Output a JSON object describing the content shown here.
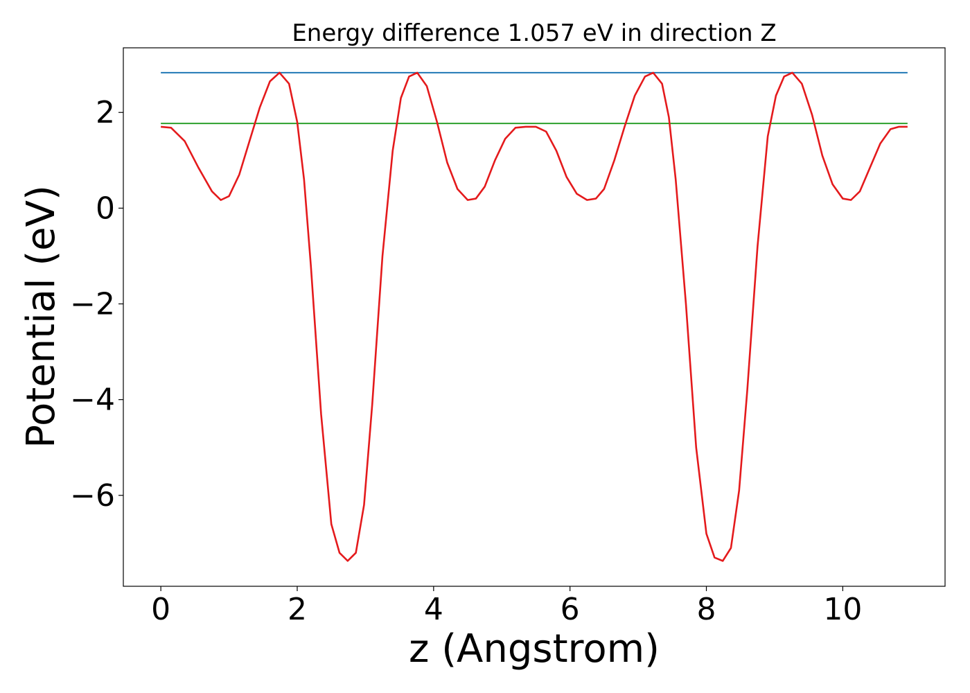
{
  "chart_data": {
    "type": "line",
    "title": "Energy difference 1.057 eV in direction Z",
    "xlabel": "z (Angstrom)",
    "ylabel": "Potential (eV)",
    "xlim": [
      -0.55,
      11.5
    ],
    "ylim": [
      -7.9,
      3.35
    ],
    "x_ticks": [
      0,
      2,
      4,
      6,
      8,
      10
    ],
    "x_tick_labels": [
      "0",
      "2",
      "4",
      "6",
      "8",
      "10"
    ],
    "y_ticks": [
      -6,
      -4,
      -2,
      0,
      2
    ],
    "y_tick_labels": [
      "−6",
      "−4",
      "−2",
      "0",
      "2"
    ],
    "grid": false,
    "legend": "none",
    "series": [
      {
        "color": "#1f77b4",
        "style": "horizontal",
        "x": [
          0,
          10.95
        ],
        "y": [
          2.83,
          2.83
        ]
      },
      {
        "color": "#2ca02c",
        "style": "horizontal",
        "x": [
          0,
          10.95
        ],
        "y": [
          1.77,
          1.77
        ]
      },
      {
        "color": "#e41a1c",
        "style": "curve",
        "x": [
          0,
          0.15,
          0.35,
          0.55,
          0.75,
          0.88,
          1.0,
          1.15,
          1.3,
          1.45,
          1.6,
          1.74,
          1.88,
          2.0,
          2.1,
          2.2,
          2.35,
          2.5,
          2.62,
          2.74,
          2.86,
          2.98,
          3.1,
          3.25,
          3.4,
          3.52,
          3.64,
          3.76,
          3.9,
          4.05,
          4.2,
          4.35,
          4.5,
          4.62,
          4.75,
          4.9,
          5.05,
          5.2,
          5.35,
          5.5,
          5.65,
          5.8,
          5.95,
          6.1,
          6.25,
          6.38,
          6.5,
          6.65,
          6.8,
          6.95,
          7.1,
          7.22,
          7.35,
          7.45,
          7.55,
          7.7,
          7.85,
          8.0,
          8.12,
          8.24,
          8.36,
          8.48,
          8.6,
          8.75,
          8.9,
          9.02,
          9.14,
          9.26,
          9.4,
          9.55,
          9.7,
          9.85,
          10.0,
          10.12,
          10.25,
          10.4,
          10.55,
          10.7,
          10.82,
          10.95
        ],
        "y": [
          1.7,
          1.68,
          1.4,
          0.85,
          0.35,
          0.17,
          0.25,
          0.7,
          1.4,
          2.1,
          2.65,
          2.83,
          2.6,
          1.8,
          0.6,
          -1.2,
          -4.3,
          -6.6,
          -7.2,
          -7.37,
          -7.2,
          -6.2,
          -4.1,
          -1.0,
          1.2,
          2.3,
          2.75,
          2.83,
          2.55,
          1.8,
          0.95,
          0.4,
          0.17,
          0.2,
          0.45,
          1.0,
          1.45,
          1.68,
          1.7,
          1.7,
          1.6,
          1.2,
          0.65,
          0.3,
          0.17,
          0.2,
          0.4,
          1.0,
          1.7,
          2.35,
          2.75,
          2.83,
          2.6,
          1.9,
          0.6,
          -2.0,
          -5.0,
          -6.8,
          -7.3,
          -7.37,
          -7.1,
          -5.9,
          -3.8,
          -0.8,
          1.5,
          2.35,
          2.75,
          2.83,
          2.6,
          1.95,
          1.1,
          0.5,
          0.2,
          0.17,
          0.35,
          0.85,
          1.35,
          1.65,
          1.7,
          1.7
        ]
      }
    ]
  }
}
